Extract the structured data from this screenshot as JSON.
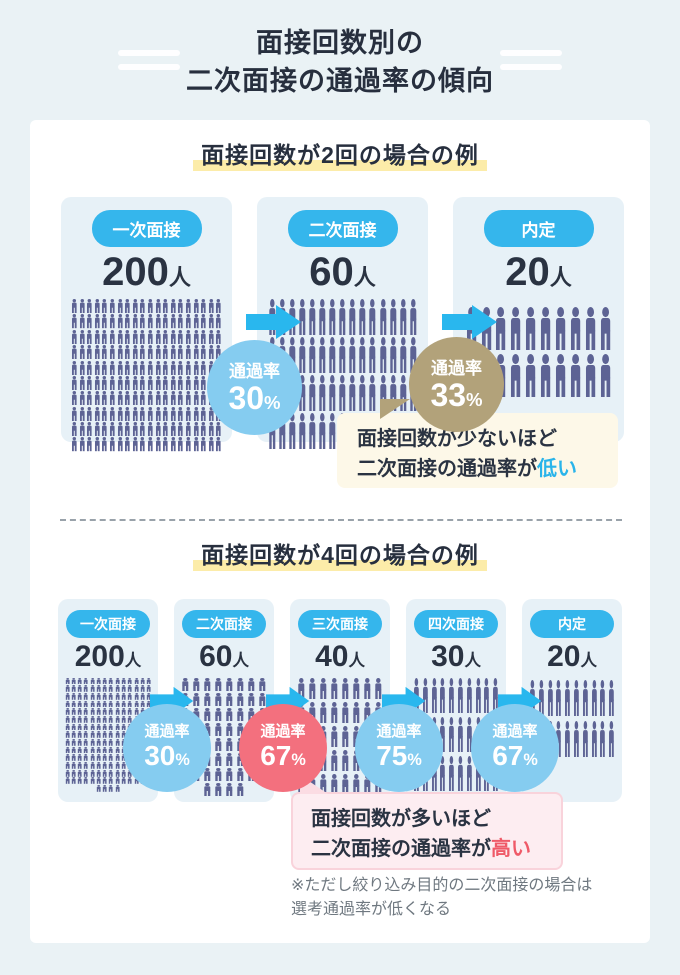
{
  "page_title": {
    "line1": "面接回数別の",
    "line2": "二次面接の通過率の傾向"
  },
  "icons": {
    "person": "person-icon",
    "arrow": "arrow-right-icon",
    "decorative_lines": "double-line-decoration"
  },
  "colors": {
    "page_bg": "#eaf2f5",
    "panel_bg": "#ffffff",
    "card_bg": "#e7f1f7",
    "pill_blue": "#35b6ec",
    "arrow_blue": "#29b7ee",
    "person_purple": "#5d6394",
    "rate_blue": "#85ccf0",
    "rate_gold": "#b2a27a",
    "rate_red": "#f3707e",
    "marker_yellow": "#fceca9",
    "accent_blue": "#29b4ea",
    "accent_red": "#ef5a68",
    "text_dark": "#2a3342",
    "note_gray": "#6f7880"
  },
  "sections": [
    {
      "title": "面接回数が2回の場合の例",
      "cards": [
        {
          "label": "一次面接",
          "count": "200",
          "unit": "人",
          "icon_count": 200,
          "icon_cols": 20
        },
        {
          "label": "二次面接",
          "count": "60",
          "unit": "人",
          "icon_count": 60,
          "icon_cols": 15
        },
        {
          "label": "内定",
          "count": "20",
          "unit": "人",
          "icon_count": 20,
          "icon_cols": 10
        }
      ],
      "rates": [
        {
          "label": "通過率",
          "value": "30",
          "unit": "%",
          "color": "#85ccf0"
        },
        {
          "label": "通過率",
          "value": "33",
          "unit": "%",
          "color": "#b2a27a"
        }
      ],
      "callout": {
        "line1": "面接回数が少ないほど",
        "line2_prefix": "二次面接の通過率が",
        "line2_highlight": "低い"
      }
    },
    {
      "title": "面接回数が4回の場合の例",
      "cards": [
        {
          "label": "一次面接",
          "count": "200",
          "unit": "人",
          "icon_count": 200,
          "icon_cols": 14
        },
        {
          "label": "二次面接",
          "count": "60",
          "unit": "人",
          "icon_count": 60,
          "icon_cols": 8
        },
        {
          "label": "三次面接",
          "count": "40",
          "unit": "人",
          "icon_count": 40,
          "icon_cols": 8
        },
        {
          "label": "四次面接",
          "count": "30",
          "unit": "人",
          "icon_count": 30,
          "icon_cols": 10
        },
        {
          "label": "内定",
          "count": "20",
          "unit": "人",
          "icon_count": 20,
          "icon_cols": 10
        }
      ],
      "rates": [
        {
          "label": "通過率",
          "value": "30",
          "unit": "%",
          "color": "#85ccf0"
        },
        {
          "label": "通過率",
          "value": "67",
          "unit": "%",
          "color": "#f3707e"
        },
        {
          "label": "通過率",
          "value": "75",
          "unit": "%",
          "color": "#85ccf0"
        },
        {
          "label": "通過率",
          "value": "67",
          "unit": "%",
          "color": "#85ccf0"
        }
      ],
      "callout": {
        "line1": "面接回数が多いほど",
        "line2_prefix": "二次面接の通過率が",
        "line2_highlight": "高い"
      },
      "note_line1": "※ただし絞り込み目的の二次面接の場合は",
      "note_line2": "選考通過率が低くなる"
    }
  ]
}
